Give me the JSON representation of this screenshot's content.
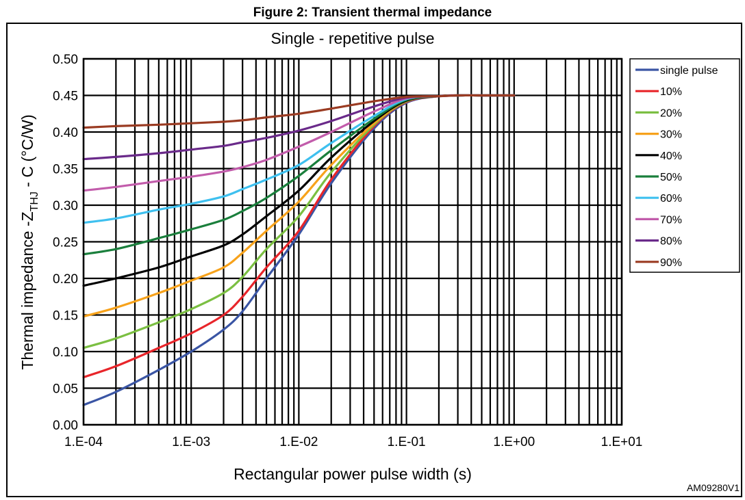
{
  "figure_title": "Figure 2: Transient thermal impedance",
  "figure_code": "AM09280V1",
  "colors": {
    "single pulse": "#3a55a4",
    "10%": "#e8252a",
    "20%": "#7bbf42",
    "30%": "#f7a21b",
    "40%": "#000000",
    "50%": "#1a7f3c",
    "60%": "#3ec0ef",
    "70%": "#c25cab",
    "80%": "#6a2a8a",
    "90%": "#9a3b22"
  },
  "chart_data": {
    "type": "line",
    "title": "Single - repetitive pulse",
    "xlabel": "Rectangular power pulse width (s)",
    "ylabel_main": "Thermal impedance  -Z",
    "ylabel_sub": "THJ",
    "ylabel_tail": " - C (°C/W)",
    "x_scale": "log",
    "xlim": [
      0.0001,
      10
    ],
    "ylim": [
      0,
      0.5
    ],
    "x_tick_labels": [
      "1.E-04",
      "1.E-03",
      "1.E-02",
      "1.E-01",
      "1.E+00",
      "1.E+01"
    ],
    "x_tick_values": [
      0.0001,
      0.001,
      0.01,
      0.1,
      1,
      10
    ],
    "y_tick_labels": [
      "0.00",
      "0.05",
      "0.10",
      "0.15",
      "0.20",
      "0.25",
      "0.30",
      "0.35",
      "0.40",
      "0.45",
      "0.50"
    ],
    "y_tick_values": [
      0,
      0.05,
      0.1,
      0.15,
      0.2,
      0.25,
      0.3,
      0.35,
      0.4,
      0.45,
      0.5
    ],
    "grid": true,
    "legend_position": "right",
    "x": [
      0.0001,
      0.0002,
      0.0005,
      0.001,
      0.002,
      0.003,
      0.005,
      0.01,
      0.02,
      0.05,
      0.1,
      0.2,
      0.3,
      0.5,
      1
    ],
    "series": [
      {
        "name": "single pulse",
        "values": [
          0.027,
          0.045,
          0.075,
          0.1,
          0.13,
          0.155,
          0.2,
          0.26,
          0.33,
          0.405,
          0.44,
          0.449,
          0.45,
          0.45,
          0.45
        ]
      },
      {
        "name": "10%",
        "values": [
          0.065,
          0.08,
          0.105,
          0.125,
          0.15,
          0.175,
          0.215,
          0.265,
          0.335,
          0.408,
          0.441,
          0.449,
          0.45,
          0.45,
          0.45
        ]
      },
      {
        "name": "20%",
        "values": [
          0.105,
          0.118,
          0.14,
          0.158,
          0.18,
          0.202,
          0.24,
          0.285,
          0.345,
          0.41,
          0.442,
          0.449,
          0.45,
          0.45,
          0.45
        ]
      },
      {
        "name": "30%",
        "values": [
          0.148,
          0.16,
          0.18,
          0.197,
          0.215,
          0.235,
          0.265,
          0.305,
          0.355,
          0.412,
          0.443,
          0.449,
          0.45,
          0.45,
          0.45
        ]
      },
      {
        "name": "40%",
        "values": [
          0.19,
          0.2,
          0.215,
          0.23,
          0.245,
          0.26,
          0.285,
          0.32,
          0.365,
          0.415,
          0.443,
          0.449,
          0.45,
          0.45,
          0.45
        ]
      },
      {
        "name": "50%",
        "values": [
          0.233,
          0.24,
          0.255,
          0.267,
          0.28,
          0.292,
          0.31,
          0.34,
          0.375,
          0.418,
          0.444,
          0.449,
          0.45,
          0.45,
          0.45
        ]
      },
      {
        "name": "60%",
        "values": [
          0.276,
          0.282,
          0.294,
          0.302,
          0.312,
          0.322,
          0.335,
          0.355,
          0.385,
          0.422,
          0.445,
          0.449,
          0.45,
          0.45,
          0.45
        ]
      },
      {
        "name": "70%",
        "values": [
          0.32,
          0.325,
          0.333,
          0.339,
          0.346,
          0.352,
          0.362,
          0.38,
          0.4,
          0.428,
          0.446,
          0.449,
          0.45,
          0.45,
          0.45
        ]
      },
      {
        "name": "80%",
        "values": [
          0.363,
          0.366,
          0.371,
          0.376,
          0.381,
          0.386,
          0.392,
          0.402,
          0.415,
          0.435,
          0.447,
          0.449,
          0.45,
          0.45,
          0.45
        ]
      },
      {
        "name": "90%",
        "values": [
          0.406,
          0.408,
          0.41,
          0.412,
          0.414,
          0.416,
          0.42,
          0.425,
          0.432,
          0.442,
          0.448,
          0.449,
          0.45,
          0.45,
          0.45
        ]
      }
    ]
  }
}
